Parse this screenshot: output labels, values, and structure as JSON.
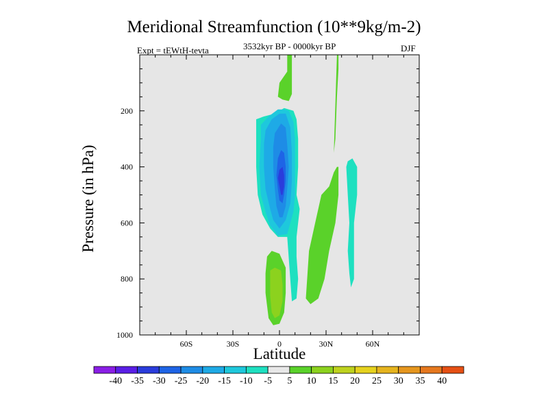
{
  "chart_data": {
    "type": "contour",
    "title": "Meridional Streamfunction (10**9kg/m-2)",
    "subtitle_left": "Expt = tEWtH-tevta",
    "subtitle_center": "3532kyr BP - 0000kyr BP",
    "subtitle_right": "DJF",
    "xlabel": "Latitude",
    "ylabel": "Pressure (in hPa)",
    "xlim": [
      -90,
      90
    ],
    "ylim": [
      1000,
      0
    ],
    "x_ticks": [
      {
        "value": -60,
        "label": "60S"
      },
      {
        "value": -30,
        "label": "30S"
      },
      {
        "value": 0,
        "label": "0"
      },
      {
        "value": 30,
        "label": "30N"
      },
      {
        "value": 60,
        "label": "60N"
      }
    ],
    "y_ticks": [
      {
        "value": 200,
        "label": "200"
      },
      {
        "value": 400,
        "label": "400"
      },
      {
        "value": 600,
        "label": "600"
      },
      {
        "value": 800,
        "label": "800"
      },
      {
        "value": 1000,
        "label": "1000"
      }
    ],
    "background_color": "#e6e6e6",
    "contour_levels": [
      -40,
      -35,
      -30,
      -25,
      -20,
      -15,
      -10,
      -5,
      5,
      10,
      15,
      20,
      25,
      30,
      35,
      40
    ],
    "colorbar_colors": [
      "#8a1ee6",
      "#5a1ee6",
      "#2a3cdc",
      "#1e64e6",
      "#1e8ce6",
      "#1eaae6",
      "#1ec8dc",
      "#1ee0c0",
      "#e8e8e8",
      "#5ad22a",
      "#8cd21e",
      "#bed21e",
      "#e6d21e",
      "#e6b41e",
      "#e6961e",
      "#e6781e",
      "#e65014"
    ],
    "regions": [
      {
        "level_index": 9,
        "points": [
          [
            5,
            0
          ],
          [
            8,
            0
          ],
          [
            8,
            140
          ],
          [
            6,
            165
          ],
          [
            2,
            160
          ],
          [
            -1,
            150
          ],
          [
            0,
            100
          ],
          [
            5,
            60
          ]
        ]
      },
      {
        "level_index": 9,
        "points": [
          [
            37,
            0
          ],
          [
            38,
            0
          ],
          [
            38,
            50
          ],
          [
            37,
            150
          ],
          [
            36,
            300
          ],
          [
            35,
            350
          ]
        ]
      },
      {
        "level_index": 9,
        "points": [
          [
            27,
            500
          ],
          [
            32,
            470
          ],
          [
            35,
            420
          ],
          [
            37,
            400
          ],
          [
            38,
            400
          ],
          [
            38,
            500
          ],
          [
            36,
            600
          ],
          [
            32,
            700
          ],
          [
            29,
            800
          ],
          [
            25,
            870
          ],
          [
            20,
            890
          ],
          [
            17,
            870
          ],
          [
            19,
            700
          ],
          [
            23,
            600
          ]
        ]
      },
      {
        "level_index": 7,
        "points": [
          [
            -15,
            230
          ],
          [
            -10,
            220
          ],
          [
            -3,
            210
          ],
          [
            3,
            190
          ],
          [
            9,
            200
          ],
          [
            11,
            230
          ],
          [
            12,
            300
          ],
          [
            12,
            400
          ],
          [
            11,
            500
          ],
          [
            13,
            550
          ],
          [
            11,
            650
          ],
          [
            11,
            720
          ],
          [
            12,
            800
          ],
          [
            11,
            870
          ],
          [
            8,
            880
          ],
          [
            5,
            650
          ],
          [
            -1,
            650
          ],
          [
            -6,
            620
          ],
          [
            -11,
            570
          ],
          [
            -14,
            500
          ],
          [
            -15,
            400
          ],
          [
            -15,
            300
          ]
        ]
      },
      {
        "level_index": 7,
        "points": [
          [
            44,
            380
          ],
          [
            47,
            370
          ],
          [
            50,
            400
          ],
          [
            50,
            500
          ],
          [
            48,
            600
          ],
          [
            48,
            700
          ],
          [
            48,
            800
          ],
          [
            46,
            830
          ],
          [
            45,
            780
          ],
          [
            44,
            700
          ],
          [
            45,
            600
          ],
          [
            44,
            500
          ],
          [
            43,
            400
          ]
        ]
      },
      {
        "level_index": 6,
        "points": [
          [
            -12,
            250
          ],
          [
            -7,
            220
          ],
          [
            -1,
            195
          ],
          [
            3,
            195
          ],
          [
            6,
            200
          ],
          [
            9,
            240
          ],
          [
            10,
            300
          ],
          [
            10,
            400
          ],
          [
            10,
            500
          ],
          [
            9,
            560
          ],
          [
            5,
            640
          ],
          [
            -1,
            645
          ],
          [
            -6,
            610
          ],
          [
            -9,
            560
          ],
          [
            -12,
            500
          ],
          [
            -13,
            400
          ],
          [
            -12,
            300
          ]
        ]
      },
      {
        "level_index": 5,
        "points": [
          [
            -9,
            270
          ],
          [
            -5,
            230
          ],
          [
            0,
            210
          ],
          [
            4,
            210
          ],
          [
            7,
            260
          ],
          [
            8,
            350
          ],
          [
            8,
            450
          ],
          [
            7,
            530
          ],
          [
            4,
            590
          ],
          [
            0,
            620
          ],
          [
            -4,
            590
          ],
          [
            -6,
            550
          ],
          [
            -9,
            480
          ],
          [
            -10,
            400
          ],
          [
            -10,
            320
          ]
        ]
      },
      {
        "level_index": 4,
        "points": [
          [
            -3,
            280
          ],
          [
            1,
            245
          ],
          [
            4,
            260
          ],
          [
            5,
            320
          ],
          [
            6,
            400
          ],
          [
            5,
            480
          ],
          [
            4,
            540
          ],
          [
            2,
            580
          ],
          [
            0,
            580
          ],
          [
            -2,
            540
          ],
          [
            -3,
            480
          ],
          [
            -4,
            400
          ],
          [
            -4,
            330
          ]
        ]
      },
      {
        "level_index": 3,
        "points": [
          [
            -1,
            370
          ],
          [
            1,
            340
          ],
          [
            3,
            350
          ],
          [
            4,
            400
          ],
          [
            4,
            450
          ],
          [
            3,
            500
          ],
          [
            2,
            530
          ],
          [
            0,
            520
          ],
          [
            -1,
            480
          ],
          [
            -2,
            430
          ]
        ]
      },
      {
        "level_index": 2,
        "points": [
          [
            0,
            410
          ],
          [
            2,
            400
          ],
          [
            3,
            430
          ],
          [
            3,
            470
          ],
          [
            2,
            500
          ],
          [
            1,
            500
          ],
          [
            0,
            470
          ],
          [
            -1,
            440
          ]
        ]
      },
      {
        "level_index": 9,
        "points": [
          [
            -8,
            720
          ],
          [
            -5,
            700
          ],
          [
            0,
            710
          ],
          [
            4,
            760
          ],
          [
            4,
            850
          ],
          [
            3,
            920
          ],
          [
            0,
            960
          ],
          [
            -4,
            965
          ],
          [
            -7,
            940
          ],
          [
            -9,
            850
          ],
          [
            -9,
            780
          ]
        ]
      },
      {
        "level_index": 10,
        "points": [
          [
            -6,
            770
          ],
          [
            -3,
            760
          ],
          [
            1,
            770
          ],
          [
            2,
            820
          ],
          [
            2,
            880
          ],
          [
            0,
            930
          ],
          [
            -3,
            940
          ],
          [
            -5,
            920
          ],
          [
            -6,
            860
          ]
        ]
      }
    ]
  }
}
